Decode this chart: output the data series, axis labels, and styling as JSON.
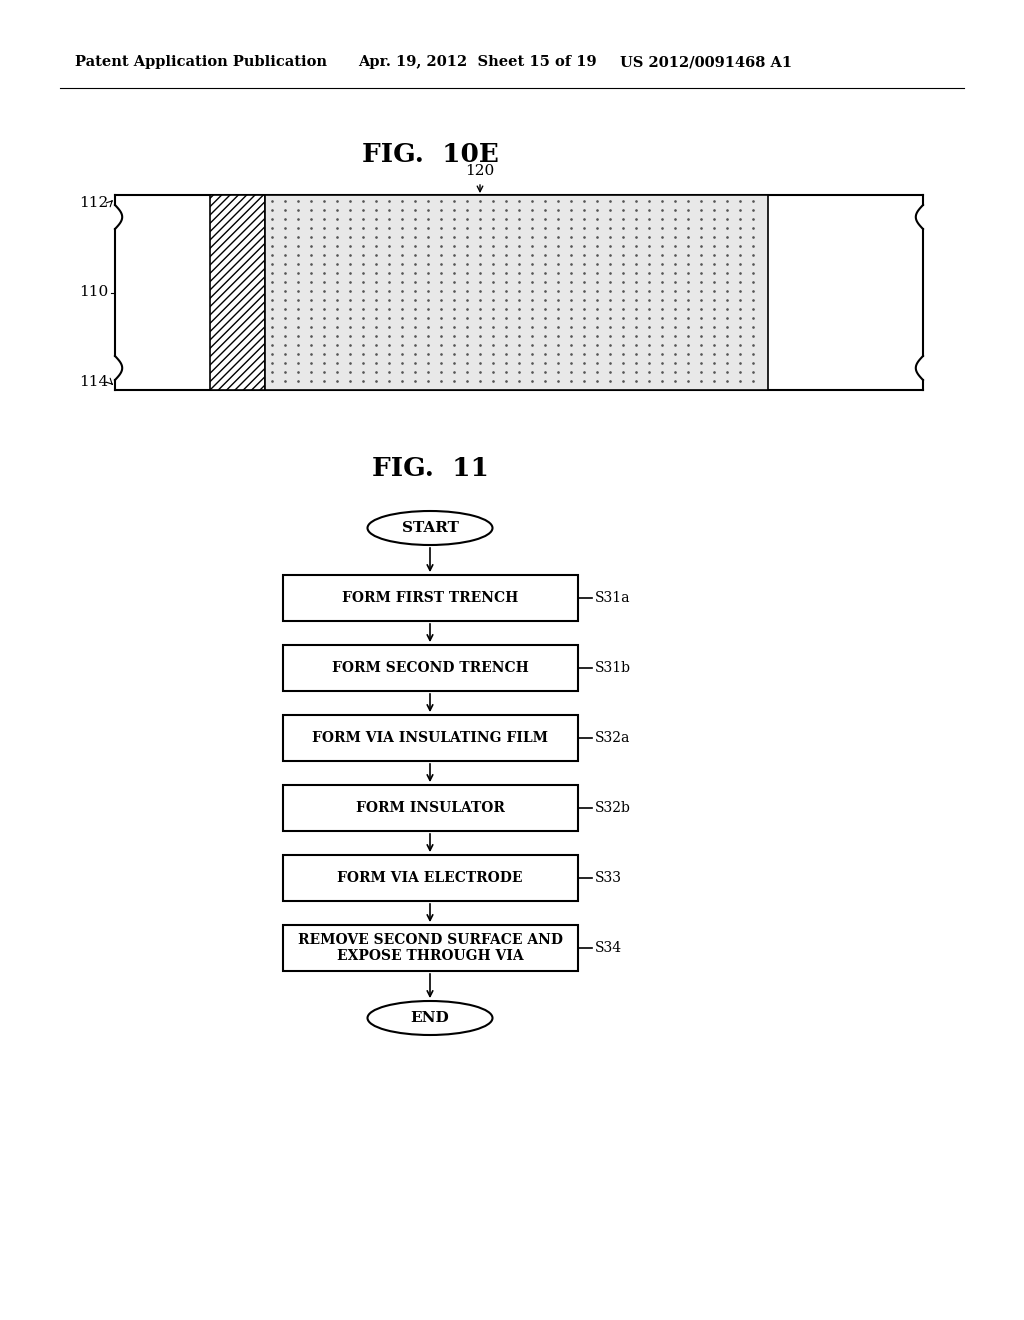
{
  "bg_color": "#ffffff",
  "header_left": "Patent Application Publication",
  "header_mid": "Apr. 19, 2012  Sheet 15 of 19",
  "header_right": "US 2012/0091468 A1",
  "fig1_title": "FIG.  10E",
  "fig2_title": "FIG.  11",
  "diagram_label_120": "120",
  "diagram_label_112": "112",
  "diagram_label_110": "110",
  "diagram_label_114": "114",
  "flowchart_steps": [
    {
      "label": "START",
      "type": "oval",
      "tag": ""
    },
    {
      "label": "FORM FIRST TRENCH",
      "type": "rect",
      "tag": "S31a"
    },
    {
      "label": "FORM SECOND TRENCH",
      "type": "rect",
      "tag": "S31b"
    },
    {
      "label": "FORM VIA INSULATING FILM",
      "type": "rect",
      "tag": "S32a"
    },
    {
      "label": "FORM INSULATOR",
      "type": "rect",
      "tag": "S32b"
    },
    {
      "label": "FORM VIA ELECTRODE",
      "type": "rect",
      "tag": "S33"
    },
    {
      "label": "REMOVE SECOND SURFACE AND\nEXPOSE THROUGH VIA",
      "type": "rect",
      "tag": "S34"
    },
    {
      "label": "END",
      "type": "oval",
      "tag": ""
    }
  ]
}
